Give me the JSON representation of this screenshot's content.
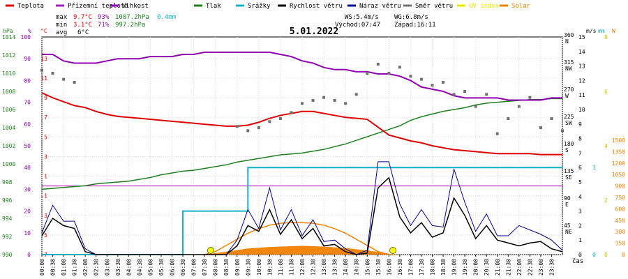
{
  "chart_data": {
    "type": "line",
    "title": "5.01.2022",
    "xlabel": "čas",
    "time_hours": [
      0,
      0.5,
      1,
      1.5,
      2,
      2.5,
      3,
      3.5,
      4,
      4.5,
      5,
      5.5,
      6,
      6.5,
      7,
      7.5,
      8,
      8.5,
      9,
      9.5,
      10,
      10.5,
      11,
      11.5,
      12,
      12.5,
      13,
      13.5,
      14,
      14.5,
      15,
      15.5,
      16,
      16.5,
      17,
      17.5,
      18,
      18.5,
      19,
      19.5,
      20,
      20.5,
      21,
      21.5,
      22,
      22.5,
      23,
      23.5,
      24
    ],
    "x_ticks": [
      "00:00",
      "00:30",
      "01:00",
      "01:30",
      "02:00",
      "02:30",
      "03:00",
      "03:30",
      "04:00",
      "04:30",
      "05:00",
      "05:30",
      "06:00",
      "06:30",
      "07:00",
      "07:30",
      "08:00",
      "08:30",
      "09:00",
      "09:30",
      "10:00",
      "10:30",
      "11:00",
      "11:30",
      "12:00",
      "12:30",
      "13:00",
      "13:30",
      "14:00",
      "14:30",
      "15:00",
      "15:30",
      "16:00",
      "16:30",
      "17:00",
      "17:30",
      "18:00",
      "18:30",
      "19:00",
      "19:30",
      "20:00",
      "20:30",
      "21:00",
      "21:30",
      "22:00",
      "22:30",
      "23:00",
      "23:30"
    ],
    "legend": [
      {
        "name": "Teplota",
        "color": "#e00000"
      },
      {
        "name": "Přízemní teplota",
        "color": "#a020c0"
      },
      {
        "name": "Vlhkost",
        "color": "#9000b0"
      },
      {
        "name": "Tlak",
        "color": "#208020"
      },
      {
        "name": "Srážky",
        "color": "#10b0c8"
      },
      {
        "name": "Rychlost větru",
        "color": "#000000"
      },
      {
        "name": "Náraz větru",
        "color": "#000090"
      },
      {
        "name": "Směr větru",
        "color": "#707070"
      },
      {
        "name": "UV index",
        "color": "#e8e800"
      },
      {
        "name": "Solar",
        "color": "#f08000"
      }
    ],
    "stats": {
      "max": {
        "label": "max",
        "temperature": "9.7°C",
        "humidity": "93%",
        "pressure": "1007.2hPa",
        "rain": "0.4mm"
      },
      "min": {
        "label": "min",
        "temperature": "3.1°C",
        "humidity": "71%",
        "pressure": "997.2hPa"
      },
      "avg": {
        "label": "avg",
        "temperature": "6°C"
      },
      "wind": {
        "ws": "WS:5.4m/s",
        "wg": "WG:6.8m/s",
        "sunrise": "Východ:07:47",
        "sunset": "Západ:16:11"
      }
    },
    "axes": {
      "hpa": {
        "label": "hPa",
        "ticks": [
          "990",
          "992",
          "994",
          "996",
          "998",
          "1000",
          "1002",
          "1004",
          "1006",
          "1008",
          "1010",
          "1012",
          "1014"
        ]
      },
      "percent": {
        "label": "%",
        "ticks": [
          "0",
          "10",
          "20",
          "30",
          "40",
          "50",
          "60",
          "70",
          "80",
          "90",
          "100"
        ]
      },
      "celsius": {
        "label": "°C",
        "ticks": [
          "-7",
          "-5",
          "-3",
          "-1",
          "1",
          "3",
          "5",
          "7",
          "9",
          "11",
          "13"
        ]
      },
      "direction": {
        "ticks": [
          {
            "deg": "360",
            "dir": "N"
          },
          {
            "deg": "315",
            "dir": "NW"
          },
          {
            "deg": "270",
            "dir": "W"
          },
          {
            "deg": "225",
            "dir": "SW"
          },
          {
            "deg": "180",
            "dir": "S"
          },
          {
            "deg": "135",
            "dir": "SE"
          },
          {
            "deg": "90",
            "dir": "E"
          },
          {
            "deg": "45",
            "dir": "NE"
          }
        ]
      },
      "ms": {
        "label": "m/s",
        "ticks": [
          "0",
          "1",
          "2",
          "3",
          "4",
          "5",
          "6",
          "7",
          "8",
          "9",
          "10",
          "11",
          "12",
          "13",
          "14",
          "15"
        ]
      },
      "mm": {
        "label": "mm",
        "ticks": [
          "0",
          "1"
        ]
      },
      "uv": {
        "label": "UV",
        "ticks": [
          "0",
          "2",
          "4",
          "6",
          "8"
        ]
      },
      "solar": {
        "label": "W",
        "ticks": [
          "0",
          "150",
          "300",
          "450",
          "600",
          "750",
          "900",
          "1050",
          "1200",
          "1350",
          "1500"
        ]
      }
    },
    "series": [
      {
        "name": "Teplota",
        "unit": "°C",
        "values": [
          9.5,
          9.0,
          8.6,
          8.2,
          8.0,
          7.6,
          7.3,
          7.1,
          7.0,
          6.9,
          6.8,
          6.7,
          6.6,
          6.5,
          6.4,
          6.3,
          6.2,
          6.1,
          6.1,
          6.2,
          6.5,
          6.9,
          7.2,
          7.4,
          7.6,
          7.6,
          7.4,
          7.2,
          7.0,
          6.9,
          6.8,
          6.0,
          5.2,
          4.9,
          4.6,
          4.4,
          4.1,
          3.9,
          3.7,
          3.6,
          3.5,
          3.4,
          3.3,
          3.3,
          3.3,
          3.3,
          3.2,
          3.2,
          3.2
        ]
      },
      {
        "name": "Vlhkost",
        "unit": "%",
        "values": [
          92,
          92,
          89,
          88,
          88,
          88,
          89,
          90,
          90,
          90,
          91,
          91,
          91,
          92,
          92,
          93,
          93,
          93,
          93,
          93,
          93,
          93,
          92,
          91,
          89,
          88,
          86,
          85,
          85,
          84,
          84,
          83,
          83,
          82,
          80,
          77,
          76,
          75,
          73,
          72,
          72,
          72,
          72,
          71,
          71,
          71,
          71,
          72,
          72
        ]
      },
      {
        "name": "Tlak",
        "unit": "hPa",
        "values": [
          997.2,
          997.3,
          997.4,
          997.5,
          997.6,
          997.8,
          997.9,
          998.0,
          998.1,
          998.3,
          998.5,
          998.8,
          999.0,
          999.2,
          999.3,
          999.5,
          999.7,
          999.9,
          1000.2,
          1000.4,
          1000.6,
          1000.8,
          1001.0,
          1001.1,
          1001.2,
          1001.4,
          1001.6,
          1001.9,
          1002.2,
          1002.6,
          1003.0,
          1003.4,
          1003.8,
          1004.2,
          1004.8,
          1005.2,
          1005.5,
          1005.8,
          1006.0,
          1006.2,
          1006.5,
          1006.7,
          1006.8,
          1006.9,
          1007.0,
          1007.1,
          1007.1,
          1007.2,
          1007.2
        ]
      },
      {
        "name": "Srážky",
        "unit": "mm",
        "values": [
          0,
          0,
          0,
          0,
          0,
          0,
          0,
          0,
          0,
          0,
          0,
          0,
          0,
          0.2,
          0.2,
          0.2,
          0.2,
          0.2,
          0.2,
          0.4,
          0.4,
          0.4,
          0.4,
          0.4,
          0.4,
          0.4,
          0.4,
          0.4,
          0.4,
          0.4,
          0.4,
          0.4,
          0.4,
          0.4,
          0.4,
          0.4,
          0.4,
          0.4,
          0.4,
          0.4,
          0.4,
          0.4,
          0.4,
          0.4,
          0.4,
          0.4,
          0.4,
          0.4,
          0.4
        ]
      },
      {
        "name": "Rychlost větru",
        "unit": "m/s",
        "values": [
          1.3,
          2.5,
          2.0,
          1.8,
          0.2,
          0,
          0,
          0,
          0,
          0,
          0,
          0,
          0,
          0,
          0,
          0,
          0,
          0,
          0.6,
          2.0,
          1.6,
          3.1,
          1.4,
          2.4,
          1.1,
          1.8,
          0.6,
          0.7,
          0.2,
          0,
          0.1,
          4.6,
          5.3,
          2.6,
          1.5,
          2.2,
          1.2,
          1.5,
          3.9,
          2.7,
          1.1,
          2.0,
          1.0,
          0.8,
          0.6,
          0.8,
          0.9,
          0.4,
          0.2
        ]
      },
      {
        "name": "Náraz větru",
        "unit": "m/s",
        "values": [
          1.5,
          3.4,
          2.3,
          2.3,
          0.4,
          0,
          0,
          0,
          0,
          0,
          0,
          0,
          0,
          0,
          0,
          0,
          0,
          0,
          1.0,
          3.1,
          1.8,
          4.6,
          1.7,
          3.1,
          1.3,
          2.4,
          0.9,
          1.0,
          0.4,
          0,
          0.3,
          6.4,
          6.4,
          3.5,
          2.0,
          3.1,
          2.0,
          1.9,
          5.9,
          3.6,
          1.6,
          2.8,
          1.3,
          1.3,
          2.0,
          1.7,
          1.4,
          1.0,
          0.3
        ]
      },
      {
        "name": "Směr větru",
        "unit": "°",
        "values": [
          305,
          300,
          290,
          285,
          null,
          null,
          null,
          null,
          null,
          null,
          null,
          null,
          null,
          null,
          null,
          null,
          null,
          null,
          212,
          205,
          210,
          220,
          225,
          235,
          250,
          255,
          260,
          255,
          250,
          265,
          300,
          315,
          300,
          310,
          295,
          290,
          280,
          285,
          265,
          270,
          245,
          265,
          200,
          225,
          245,
          260,
          210,
          225,
          205
        ]
      },
      {
        "name": "Solar",
        "unit": "W/m²",
        "values": [
          0,
          0,
          0,
          0,
          0,
          0,
          0,
          0,
          0,
          0,
          0,
          0,
          0,
          0,
          0,
          0,
          20,
          40,
          60,
          80,
          90,
          100,
          105,
          110,
          115,
          110,
          105,
          95,
          85,
          70,
          55,
          35,
          10,
          0,
          0,
          0,
          0,
          0,
          0,
          0,
          0,
          0,
          0,
          0,
          0,
          0,
          0,
          0,
          0
        ]
      }
    ],
    "solar_theoretical": {
      "name": "Solar (theoretical)",
      "unit": "W/m²",
      "values": [
        0,
        0,
        0,
        0,
        0,
        0,
        0,
        0,
        0,
        0,
        0,
        0,
        0,
        0,
        0,
        0,
        40,
        120,
        200,
        280,
        340,
        385,
        410,
        420,
        420,
        410,
        385,
        340,
        280,
        200,
        120,
        40,
        0,
        0,
        0,
        0,
        0,
        0,
        0,
        0,
        0,
        0,
        0,
        0,
        0,
        0,
        0,
        0,
        0
      ]
    },
    "sun_markers": [
      "07:47",
      "16:11"
    ],
    "ylim": {
      "celsius": [
        -7,
        15.2
      ],
      "hpa": [
        990,
        1014
      ],
      "ms": [
        0,
        15
      ]
    }
  }
}
